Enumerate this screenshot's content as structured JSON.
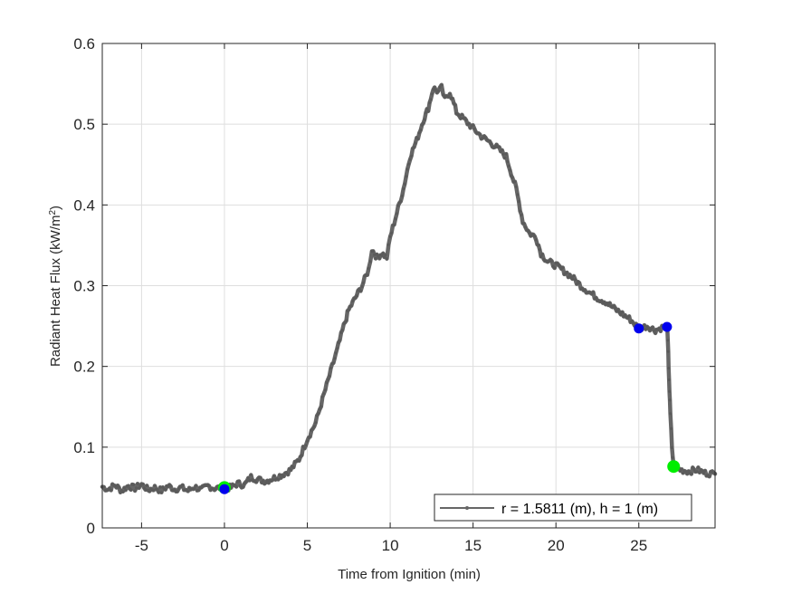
{
  "chart_data": {
    "type": "line",
    "title": "",
    "xlabel": "Time from Ignition (min)",
    "ylabel": "Radiant Heat Flux (kW/m²)",
    "ylabel_parts": {
      "main": "Radiant Heat Flux (kW/m",
      "sup": "2",
      "end": ")"
    },
    "xlim": [
      -7.37,
      29.6
    ],
    "ylim": [
      0,
      0.6
    ],
    "xticks": [
      -5,
      0,
      5,
      10,
      15,
      20,
      25
    ],
    "xtick_labels": [
      "-5",
      "0",
      "5",
      "10",
      "15",
      "20",
      "25"
    ],
    "yticks": [
      0,
      0.1,
      0.2,
      0.3,
      0.4,
      0.5,
      0.6
    ],
    "ytick_labels": [
      "0",
      "0.1",
      "0.2",
      "0.3",
      "0.4",
      "0.5",
      "0.6"
    ],
    "grid": true,
    "legend": {
      "position": "lower right",
      "entries": [
        "r = 1.5811 (m), h = 1 (m)"
      ]
    },
    "series": [
      {
        "name": "r = 1.5811 (m), h = 1 (m)",
        "color": "#666666",
        "marker": "dot",
        "x": [
          -7.37,
          -7.0,
          -6.6,
          -6.2,
          -5.8,
          -5.4,
          -5.0,
          -4.6,
          -4.2,
          -3.8,
          -3.4,
          -3.0,
          -2.6,
          -2.2,
          -1.8,
          -1.4,
          -1.0,
          -0.6,
          -0.2,
          0.0,
          0.4,
          0.8,
          1.2,
          1.6,
          2.0,
          2.5,
          3.0,
          3.5,
          4.0,
          4.5,
          5.0,
          5.5,
          6.0,
          6.5,
          6.8,
          7.2,
          7.5,
          7.9,
          8.3,
          8.7,
          8.9,
          9.2,
          9.5,
          9.8,
          10.0,
          10.4,
          10.8,
          11.2,
          11.6,
          12.0,
          12.3,
          12.6,
          12.9,
          13.1,
          13.3,
          13.6,
          14.0,
          14.5,
          15.0,
          15.5,
          16.0,
          16.5,
          17.0,
          17.3,
          17.6,
          18.0,
          18.4,
          18.8,
          19.1,
          19.5,
          20.0,
          20.5,
          21.0,
          21.5,
          22.0,
          22.5,
          23.0,
          23.5,
          24.0,
          24.5,
          25.0,
          25.5,
          26.0,
          26.4,
          26.7,
          26.75,
          26.8,
          26.85,
          26.9,
          27.0,
          27.1,
          27.5,
          28.0,
          28.5,
          29.0,
          29.6
        ],
        "values": [
          0.051,
          0.048,
          0.053,
          0.046,
          0.052,
          0.049,
          0.054,
          0.047,
          0.05,
          0.046,
          0.052,
          0.048,
          0.05,
          0.046,
          0.051,
          0.047,
          0.052,
          0.049,
          0.05,
          0.049,
          0.05,
          0.055,
          0.053,
          0.063,
          0.06,
          0.058,
          0.062,
          0.066,
          0.072,
          0.085,
          0.11,
          0.13,
          0.165,
          0.2,
          0.22,
          0.25,
          0.27,
          0.285,
          0.3,
          0.32,
          0.345,
          0.335,
          0.34,
          0.335,
          0.36,
          0.39,
          0.42,
          0.46,
          0.48,
          0.505,
          0.52,
          0.545,
          0.54,
          0.545,
          0.53,
          0.54,
          0.515,
          0.505,
          0.495,
          0.485,
          0.478,
          0.47,
          0.46,
          0.44,
          0.42,
          0.38,
          0.365,
          0.36,
          0.34,
          0.33,
          0.325,
          0.318,
          0.31,
          0.3,
          0.292,
          0.285,
          0.28,
          0.272,
          0.265,
          0.258,
          0.247,
          0.25,
          0.245,
          0.248,
          0.249,
          0.23,
          0.2,
          0.17,
          0.14,
          0.1,
          0.076,
          0.072,
          0.07,
          0.072,
          0.068,
          0.067
        ]
      }
    ],
    "highlight_points": [
      {
        "label": "start-green",
        "x": 0.0,
        "y": 0.05,
        "color": "#00ee00"
      },
      {
        "label": "start-blue",
        "x": 0.0,
        "y": 0.048,
        "color": "#0000ee"
      },
      {
        "label": "blue-1",
        "x": 25.0,
        "y": 0.247,
        "color": "#0000ee"
      },
      {
        "label": "blue-2",
        "x": 26.7,
        "y": 0.249,
        "color": "#0000ee"
      },
      {
        "label": "end-green",
        "x": 27.1,
        "y": 0.076,
        "color": "#00ee00"
      }
    ]
  },
  "legend_label": "r = 1.5811 (m), h = 1 (m)",
  "xlabel": "Time from Ignition (min)"
}
